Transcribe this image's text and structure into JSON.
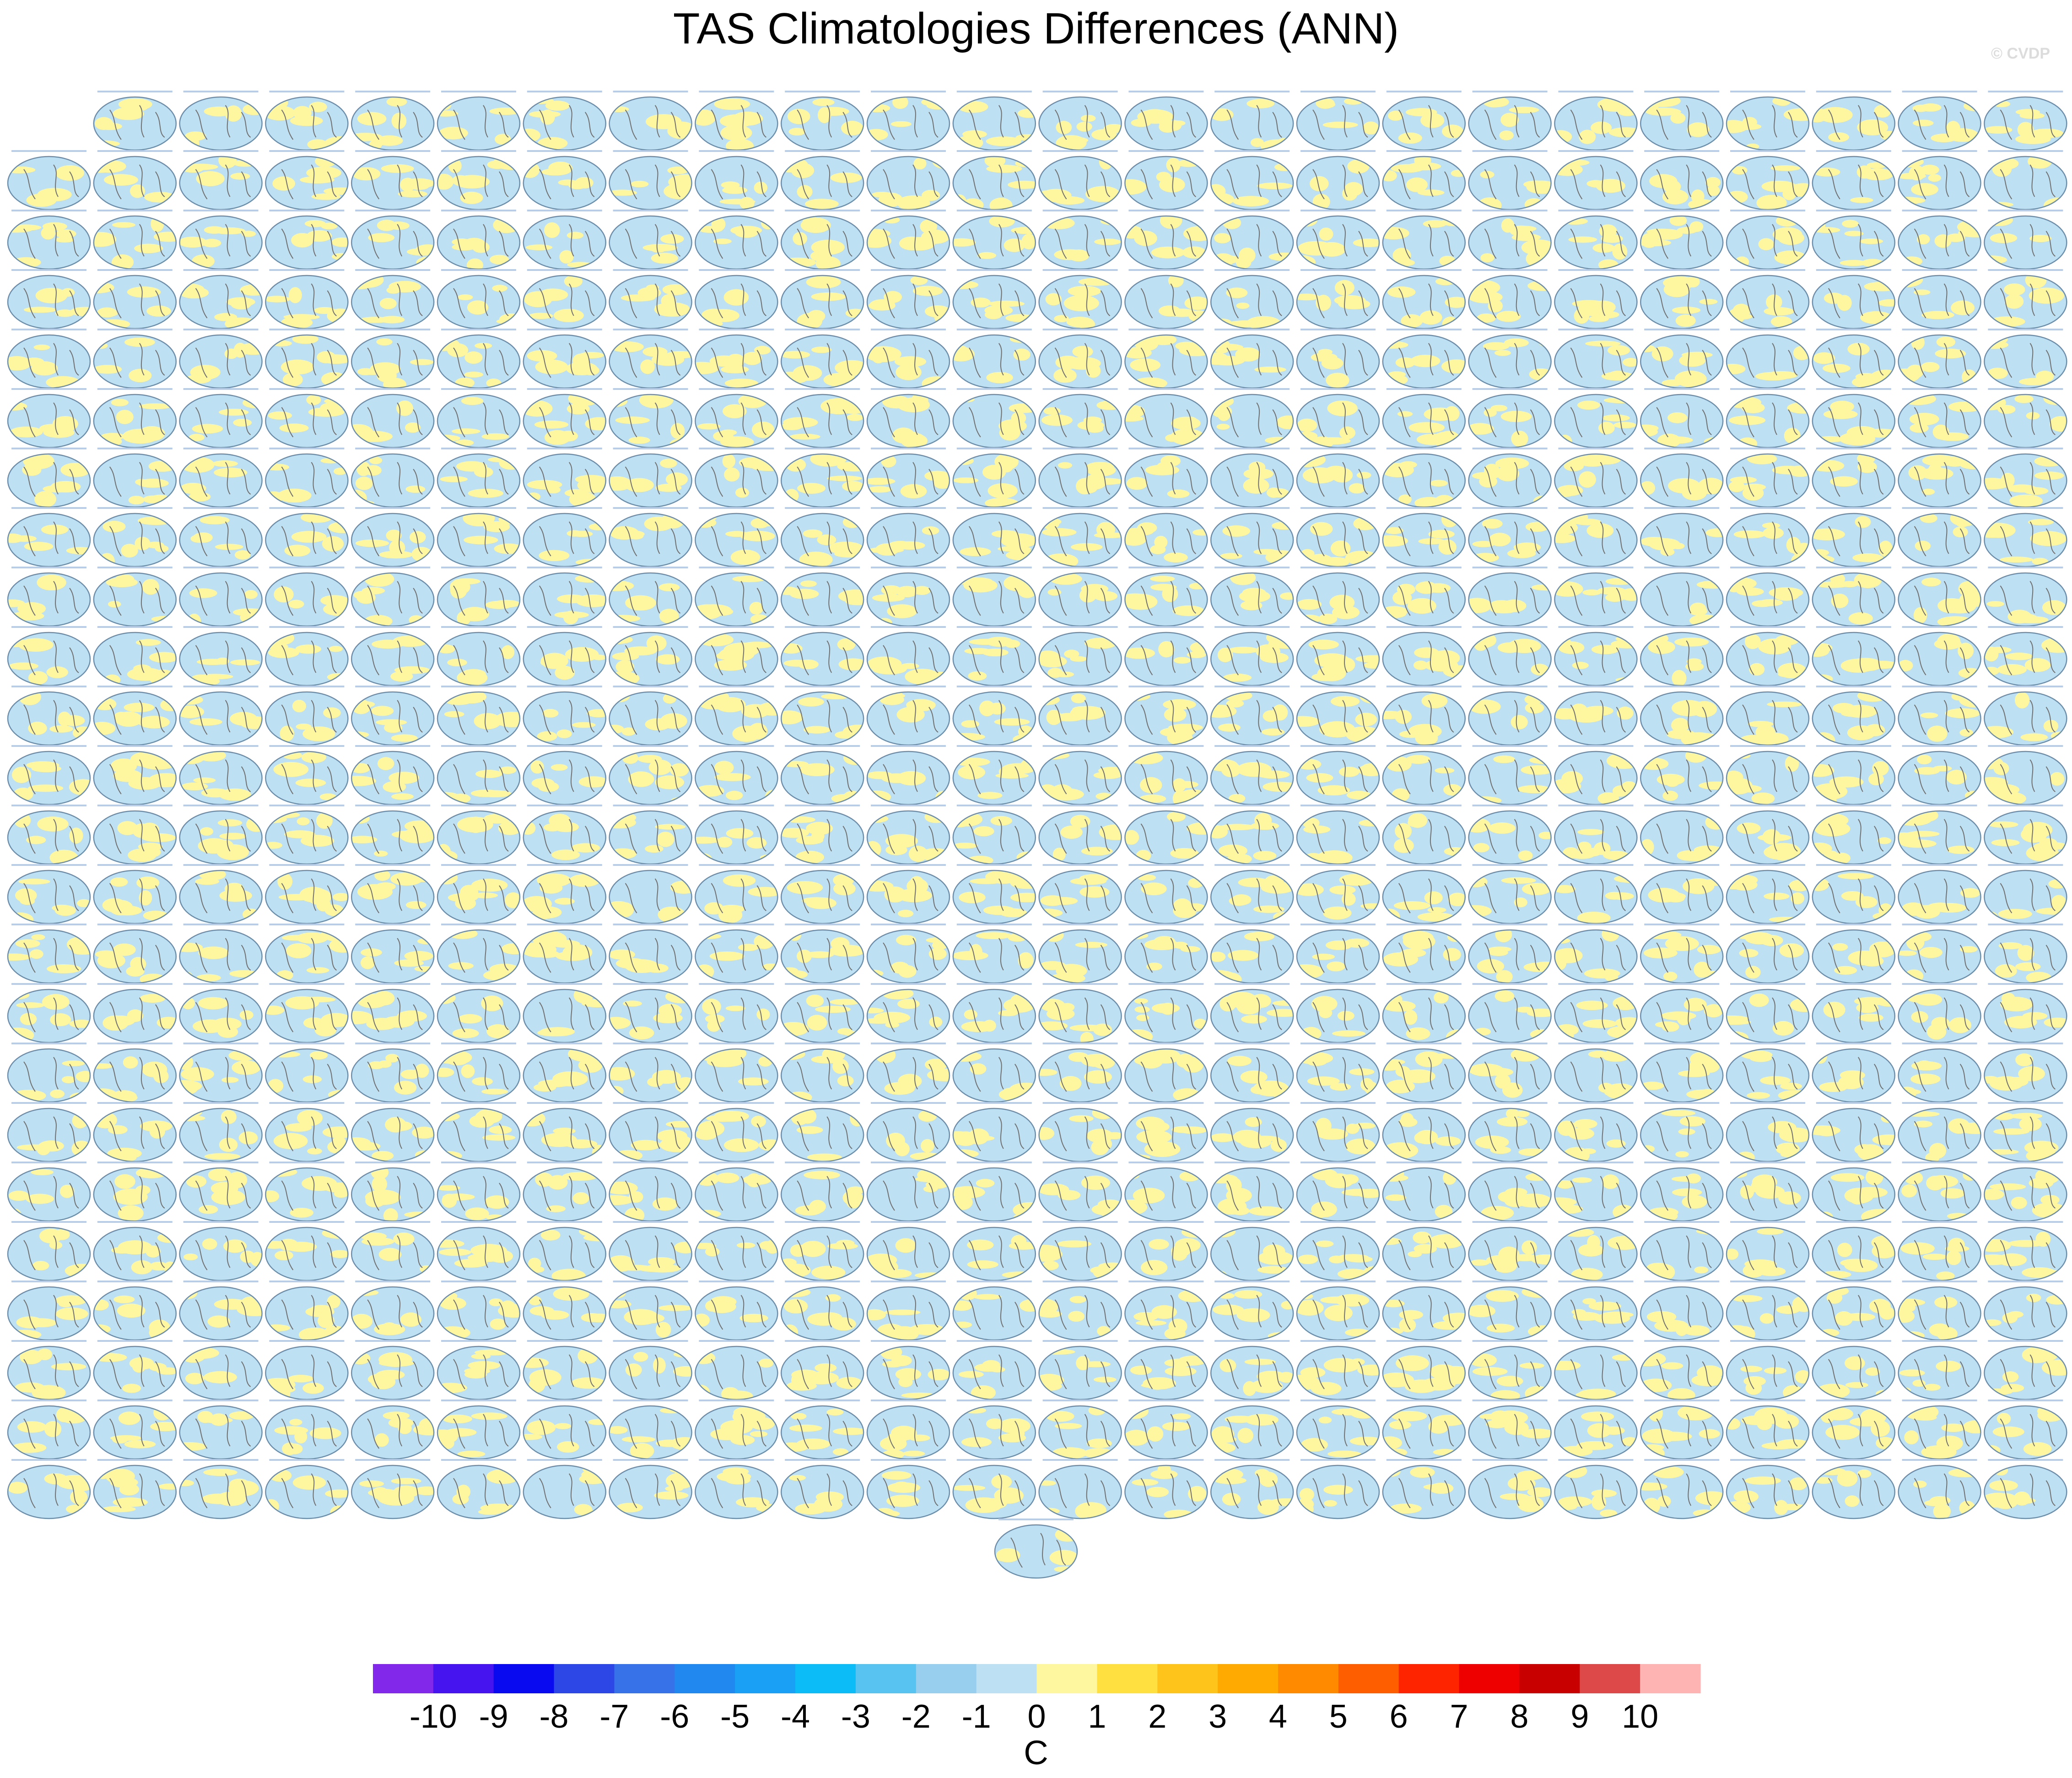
{
  "chart_data": {
    "type": "heatmap",
    "title": "TAS Climatologies Differences (ANN)",
    "watermark": "© CVDP",
    "panel_grid": {
      "rows": 25,
      "columns": 24,
      "first_row_panels": 23,
      "last_row_panels": 1
    },
    "colorbar": {
      "unit": "C",
      "tick_labels": [
        "-10",
        "-9",
        "-8",
        "-7",
        "-6",
        "-5",
        "-4",
        "-3",
        "-2",
        "-1",
        "0",
        "1",
        "2",
        "3",
        "4",
        "5",
        "6",
        "7",
        "8",
        "9",
        "10"
      ],
      "colors": [
        "#8128ea",
        "#4614ef",
        "#0a0af0",
        "#2d46e6",
        "#3872e8",
        "#2188f0",
        "#1aa0f5",
        "#0bbcf7",
        "#58c3f0",
        "#98ceee",
        "#bee0f3",
        "#fff7a0",
        "#ffe040",
        "#ffc41c",
        "#ffaa00",
        "#ff8a00",
        "#ff5e00",
        "#ff2400",
        "#ef0000",
        "#c80000",
        "#dd4848",
        "#ffb4b4"
      ]
    }
  }
}
